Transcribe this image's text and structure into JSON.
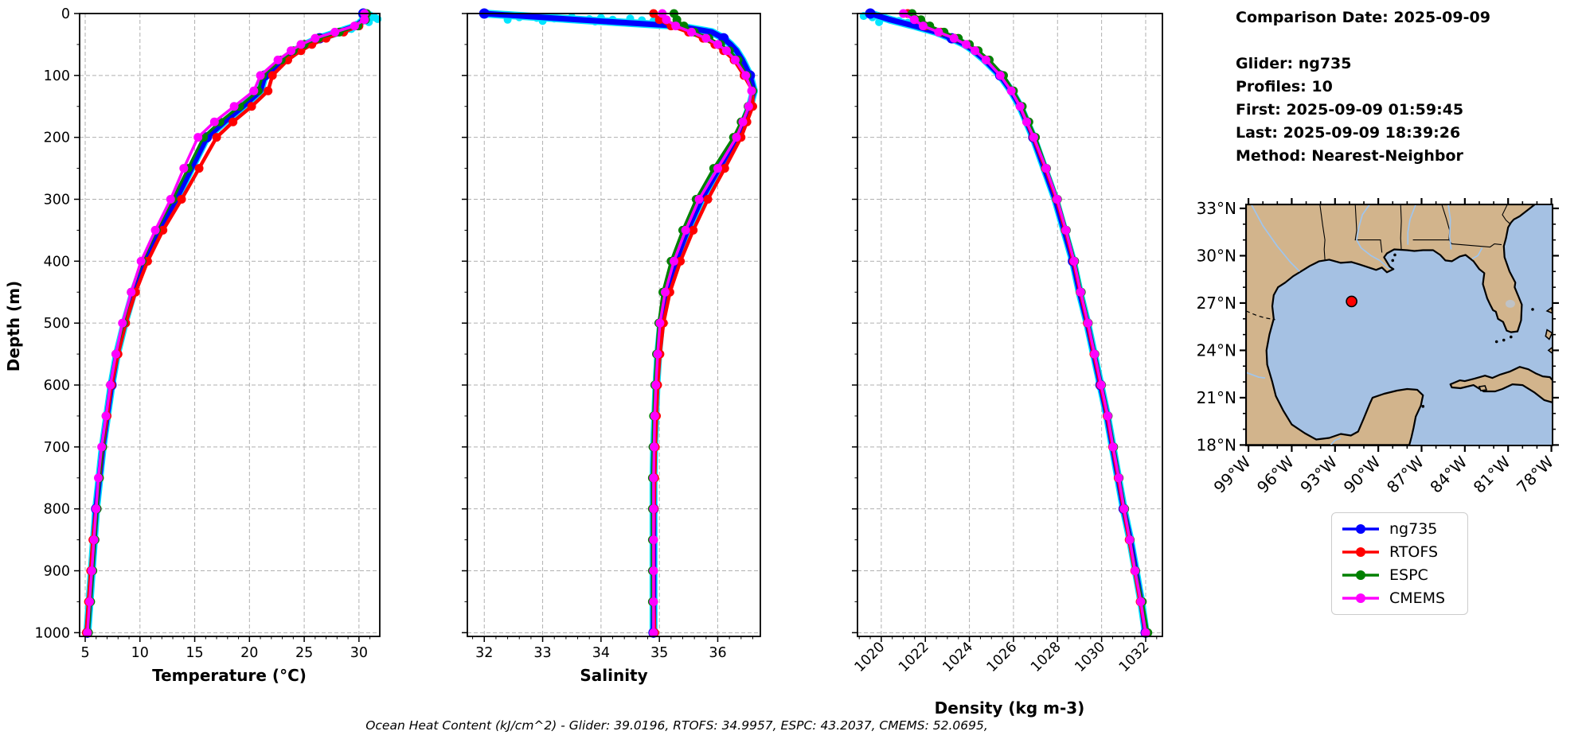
{
  "info_panel": {
    "date_line": "Comparison Date: 2025-09-09",
    "glider_line": "Glider: ng735",
    "profiles_line": "Profiles: 10",
    "first_line": "First: 2025-09-09 01:59:45",
    "last_line": "Last: 2025-09-09 18:39:26",
    "method_line": "Method: Nearest-Neighbor"
  },
  "caption": "Ocean Heat Content (kJ/cm^2) - Glider: 39.0196,  RTOFS: 34.9957,  ESPC: 43.2037,  CMEMS: 52.0695,",
  "legend": {
    "entries": [
      {
        "label": "ng735",
        "color": "#0000ff"
      },
      {
        "label": "RTOFS",
        "color": "#ff0000"
      },
      {
        "label": "ESPC",
        "color": "#008000"
      },
      {
        "label": "CMEMS",
        "color": "#ff00ff"
      }
    ]
  },
  "colors": {
    "grid": "#b0b0b0",
    "raw_glider": "#00e5ff",
    "map_land": "#d2b48c",
    "map_ocean": "#a5c1e3",
    "map_river": "#9fc5ee",
    "map_lake": "#bfc3c7",
    "marker_red": "#ff0000"
  },
  "chart_data": [
    {
      "type": "line",
      "id": "temperature-profile",
      "xlabel": "Temperature (°C)",
      "ylabel": "Depth (m)",
      "xlim": [
        4.49,
        31.9
      ],
      "ylim": [
        0,
        1006
      ],
      "xticks": [
        5,
        10,
        15,
        20,
        25,
        30
      ],
      "yticks": [
        0,
        100,
        200,
        300,
        400,
        500,
        600,
        700,
        800,
        900,
        1000
      ],
      "minor_x_step": 1,
      "grid": true,
      "depths": [
        0,
        10,
        20,
        30,
        40,
        50,
        60,
        75,
        100,
        125,
        150,
        175,
        200,
        250,
        300,
        350,
        400,
        450,
        500,
        550,
        600,
        650,
        700,
        750,
        800,
        850,
        900,
        950,
        1000
      ],
      "series": [
        {
          "name": "ng735",
          "color": "#0000ff",
          "values": [
            30.4,
            30.4,
            29.8,
            28.1,
            26.4,
            25.1,
            24.2,
            23.1,
            21.4,
            21.0,
            19.4,
            17.7,
            16.1,
            14.7,
            13.3,
            11.7,
            10.4,
            9.4,
            8.6,
            7.9,
            7.4,
            7.0,
            6.6,
            6.3,
            6.0,
            5.8,
            5.6,
            5.4,
            5.2
          ]
        },
        {
          "name": "RTOFS",
          "color": "#ff0000",
          "values": [
            30.6,
            30.5,
            30.0,
            28.6,
            27.0,
            25.7,
            24.7,
            23.5,
            22.1,
            21.7,
            20.2,
            18.5,
            17.0,
            15.4,
            13.8,
            12.1,
            10.7,
            9.6,
            8.7,
            8.0,
            7.4,
            7.0,
            6.6,
            6.3,
            6.0,
            5.7,
            5.5,
            5.3,
            5.1
          ]
        },
        {
          "name": "ESPC",
          "color": "#008000",
          "values": [
            30.7,
            30.6,
            29.9,
            28.2,
            26.3,
            25.0,
            24.0,
            22.9,
            21.2,
            20.8,
            19.1,
            17.3,
            15.8,
            14.4,
            13.0,
            11.5,
            10.2,
            9.2,
            8.5,
            7.8,
            7.3,
            6.9,
            6.6,
            6.3,
            6.1,
            5.9,
            5.7,
            5.5,
            5.3
          ]
        },
        {
          "name": "CMEMS",
          "color": "#ff00ff",
          "values": [
            30.5,
            30.5,
            29.6,
            27.8,
            26.0,
            24.7,
            23.8,
            22.6,
            21.0,
            20.4,
            18.6,
            16.8,
            15.3,
            14.0,
            12.8,
            11.4,
            10.1,
            9.2,
            8.4,
            7.8,
            7.3,
            6.9,
            6.5,
            6.2,
            6.0,
            5.8,
            5.6,
            5.4,
            5.2
          ]
        }
      ],
      "raw_scatter": {
        "name": "glider-raw",
        "color": "#00e5ff",
        "points": [
          [
            31.0,
            3
          ],
          [
            31.4,
            6
          ],
          [
            31.7,
            9
          ],
          [
            30.8,
            5
          ],
          [
            30.3,
            12
          ],
          [
            29.8,
            18
          ],
          [
            29.3,
            25
          ],
          [
            30.9,
            14
          ]
        ]
      }
    },
    {
      "type": "line",
      "id": "salinity-profile",
      "xlabel": "Salinity",
      "ylabel": "",
      "xlim": [
        31.71,
        36.73
      ],
      "ylim": [
        0,
        1006
      ],
      "xticks": [
        32,
        33,
        34,
        35,
        36
      ],
      "yticks": [
        0,
        100,
        200,
        300,
        400,
        500,
        600,
        700,
        800,
        900,
        1000
      ],
      "minor_x_step": 0.2,
      "grid": true,
      "depths": [
        0,
        10,
        20,
        30,
        40,
        50,
        60,
        75,
        100,
        125,
        150,
        175,
        200,
        250,
        300,
        350,
        400,
        450,
        500,
        550,
        600,
        650,
        700,
        750,
        800,
        850,
        900,
        950,
        1000
      ],
      "series": [
        {
          "name": "ng735",
          "color": "#0000ff",
          "values": [
            32.0,
            33.6,
            35.3,
            35.9,
            36.1,
            36.22,
            36.32,
            36.42,
            36.55,
            36.62,
            36.55,
            36.45,
            36.33,
            36.02,
            35.72,
            35.48,
            35.28,
            35.12,
            35.03,
            34.98,
            34.95,
            34.93,
            34.91,
            34.9,
            34.9,
            34.9,
            34.9,
            34.9,
            34.9
          ]
        },
        {
          "name": "RTOFS",
          "color": "#ff0000",
          "values": [
            34.9,
            35.0,
            35.2,
            35.5,
            35.75,
            35.95,
            36.1,
            36.28,
            36.45,
            36.6,
            36.6,
            36.5,
            36.4,
            36.12,
            35.83,
            35.58,
            35.36,
            35.18,
            35.07,
            35.01,
            34.97,
            34.95,
            34.93,
            34.92,
            34.91,
            34.9,
            34.9,
            34.9,
            34.92
          ]
        },
        {
          "name": "ESPC",
          "color": "#008000",
          "values": [
            35.25,
            35.3,
            35.42,
            35.6,
            35.85,
            36.05,
            36.2,
            36.35,
            36.5,
            36.6,
            36.52,
            36.4,
            36.27,
            35.93,
            35.63,
            35.4,
            35.2,
            35.06,
            34.99,
            34.95,
            34.92,
            34.9,
            34.89,
            34.88,
            34.88,
            34.88,
            34.88,
            34.88,
            34.9
          ]
        },
        {
          "name": "CMEMS",
          "color": "#ff00ff",
          "values": [
            35.05,
            35.12,
            35.28,
            35.55,
            35.8,
            36.0,
            36.15,
            36.3,
            36.48,
            36.58,
            36.53,
            36.43,
            36.32,
            36.0,
            35.68,
            35.45,
            35.25,
            35.1,
            35.01,
            34.97,
            34.94,
            34.92,
            34.91,
            34.9,
            34.9,
            34.9,
            34.9,
            34.9,
            34.9
          ]
        }
      ],
      "raw_scatter": {
        "name": "glider-raw",
        "color": "#00e5ff",
        "points": [
          [
            32.6,
            6
          ],
          [
            32.9,
            7
          ],
          [
            33.2,
            8
          ],
          [
            33.5,
            6
          ],
          [
            33.8,
            9
          ],
          [
            34.0,
            7
          ],
          [
            34.2,
            10
          ],
          [
            34.5,
            8
          ],
          [
            34.7,
            11
          ],
          [
            33.0,
            12
          ],
          [
            33.9,
            13
          ],
          [
            34.9,
            12
          ],
          [
            35.1,
            14
          ],
          [
            32.4,
            10
          ]
        ]
      }
    },
    {
      "type": "line",
      "id": "density-profile",
      "xlabel": "Density (kg m-3)",
      "ylabel": "",
      "xlim": [
        1018.92,
        1032.76
      ],
      "ylim": [
        0,
        1006
      ],
      "xticks": [
        1020,
        1022,
        1024,
        1026,
        1028,
        1030,
        1032
      ],
      "xtick_rotation": 45,
      "yticks": [
        0,
        100,
        200,
        300,
        400,
        500,
        600,
        700,
        800,
        900,
        1000
      ],
      "minor_x_step": 0.5,
      "grid": true,
      "depths": [
        0,
        10,
        20,
        30,
        40,
        50,
        60,
        75,
        100,
        125,
        150,
        175,
        200,
        250,
        300,
        350,
        400,
        450,
        500,
        550,
        600,
        650,
        700,
        750,
        800,
        850,
        900,
        950,
        1000
      ],
      "series": [
        {
          "name": "ng735",
          "color": "#0000ff",
          "values": [
            1019.5,
            1020.4,
            1021.5,
            1022.5,
            1023.2,
            1023.8,
            1024.2,
            1024.7,
            1025.4,
            1025.9,
            1026.3,
            1026.6,
            1026.9,
            1027.4,
            1027.9,
            1028.3,
            1028.7,
            1029.0,
            1029.35,
            1029.65,
            1029.95,
            1030.25,
            1030.5,
            1030.75,
            1031.0,
            1031.3,
            1031.55,
            1031.8,
            1032.0
          ]
        },
        {
          "name": "RTOFS",
          "color": "#ff0000",
          "values": [
            1021.2,
            1021.6,
            1022.0,
            1022.7,
            1023.35,
            1023.9,
            1024.3,
            1024.8,
            1025.45,
            1025.95,
            1026.3,
            1026.6,
            1026.9,
            1027.45,
            1027.95,
            1028.35,
            1028.72,
            1029.03,
            1029.35,
            1029.65,
            1029.95,
            1030.25,
            1030.5,
            1030.75,
            1031.0,
            1031.25,
            1031.5,
            1031.75,
            1032.0
          ]
        },
        {
          "name": "ESPC",
          "color": "#008000",
          "values": [
            1021.4,
            1021.8,
            1022.2,
            1022.85,
            1023.5,
            1024.0,
            1024.4,
            1024.9,
            1025.55,
            1026.0,
            1026.4,
            1026.7,
            1027.0,
            1027.5,
            1028.0,
            1028.4,
            1028.78,
            1029.08,
            1029.4,
            1029.7,
            1030.0,
            1030.3,
            1030.55,
            1030.8,
            1031.05,
            1031.3,
            1031.55,
            1031.85,
            1032.1
          ]
        },
        {
          "name": "CMEMS",
          "color": "#ff00ff",
          "values": [
            1021.0,
            1021.5,
            1021.9,
            1022.6,
            1023.3,
            1023.85,
            1024.25,
            1024.75,
            1025.4,
            1025.9,
            1026.3,
            1026.6,
            1026.92,
            1027.48,
            1027.98,
            1028.38,
            1028.75,
            1029.05,
            1029.38,
            1029.68,
            1029.98,
            1030.28,
            1030.52,
            1030.78,
            1031.02,
            1031.28,
            1031.52,
            1031.78,
            1032.0
          ]
        }
      ],
      "raw_scatter": {
        "name": "glider-raw",
        "color": "#00e5ff",
        "points": [
          [
            1019.2,
            4
          ],
          [
            1019.6,
            6
          ],
          [
            1020.0,
            8
          ],
          [
            1020.4,
            10
          ],
          [
            1020.8,
            12
          ],
          [
            1021.2,
            15
          ],
          [
            1021.6,
            18
          ],
          [
            1019.9,
            14
          ]
        ]
      }
    },
    {
      "type": "map",
      "id": "location-map",
      "extent": {
        "lon": [
          -99.17,
          -77.92
        ],
        "lat": [
          17.97,
          33.25
        ]
      },
      "lat_ticks": [
        {
          "value": 33,
          "label": "33°N"
        },
        {
          "value": 30,
          "label": "30°N"
        },
        {
          "value": 27,
          "label": "27°N"
        },
        {
          "value": 24,
          "label": "24°N"
        },
        {
          "value": 21,
          "label": "21°N"
        },
        {
          "value": 18,
          "label": "18°N"
        }
      ],
      "lon_ticks": [
        {
          "value": -99,
          "label": "99°W"
        },
        {
          "value": -96,
          "label": "96°W"
        },
        {
          "value": -93,
          "label": "93°W"
        },
        {
          "value": -90,
          "label": "90°W"
        },
        {
          "value": -87,
          "label": "87°W"
        },
        {
          "value": -84,
          "label": "84°W"
        },
        {
          "value": -81,
          "label": "81°W"
        },
        {
          "value": -78,
          "label": "78°W"
        }
      ],
      "marker": {
        "lon": -91.85,
        "lat": 27.1,
        "color": "#ff0000"
      }
    }
  ]
}
